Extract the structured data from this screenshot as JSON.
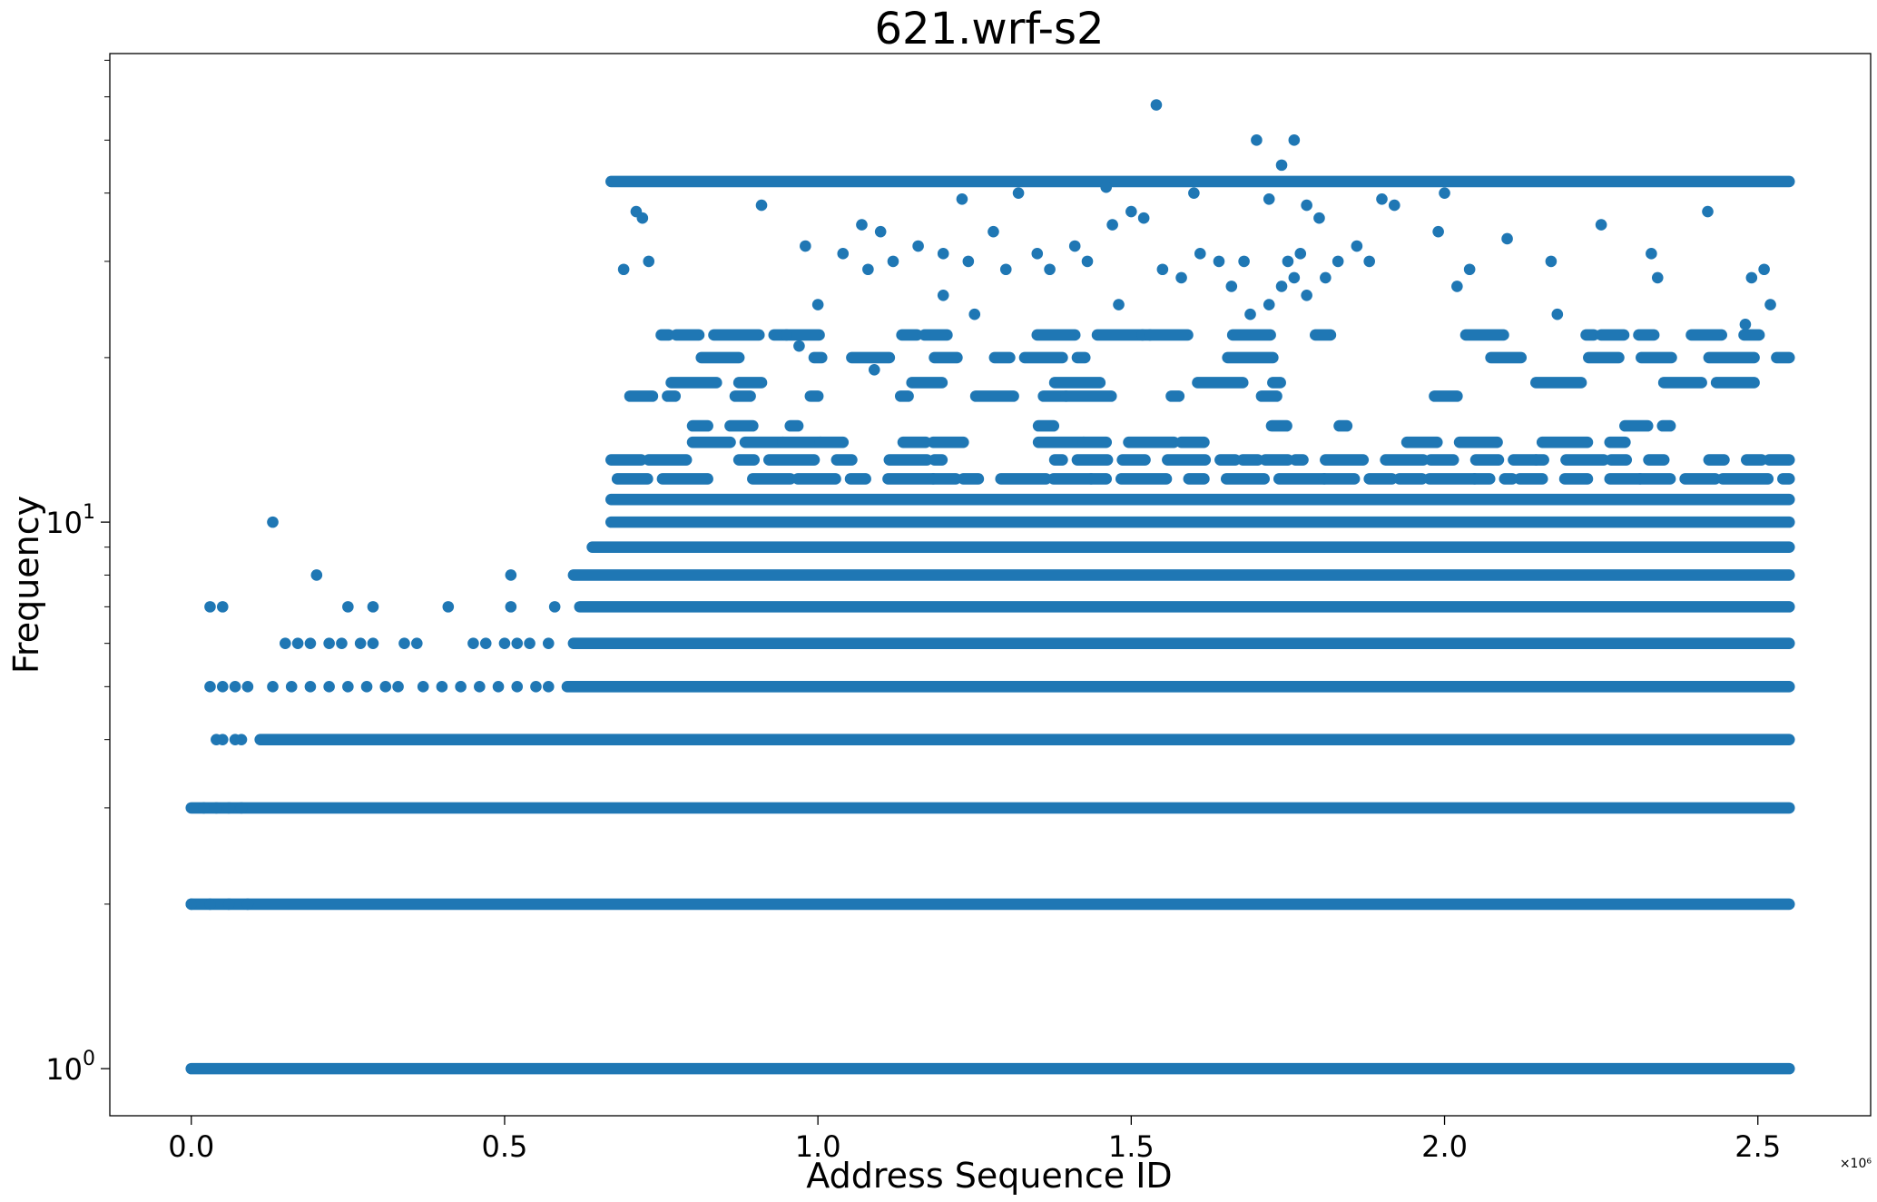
{
  "chart_data": {
    "type": "scatter",
    "title": "621.wrf-s2",
    "xlabel": "Address Sequence ID",
    "ylabel": "Frequency",
    "x_offset_label": "×10⁶",
    "xlim": [
      -0.13,
      2.68
    ],
    "ylim": [
      0.82,
      72
    ],
    "yscale": "log",
    "grid": false,
    "legend": "none",
    "marker_color": "#1f77b4",
    "x_ticks": [
      0.0,
      0.5,
      1.0,
      1.5,
      2.0,
      2.5
    ],
    "x_tick_labels": [
      "0.0",
      "0.5",
      "1.0",
      "1.5",
      "2.0",
      "2.5"
    ],
    "y_major_ticks": [
      1,
      10
    ],
    "y_tick_base": "10",
    "y_tick_exps": [
      "0",
      "1"
    ],
    "bands": [
      {
        "y": 1,
        "x_start": 0.0,
        "x_end": 2.55
      },
      {
        "y": 2,
        "x_start": 0.0,
        "x_end": 2.55
      },
      {
        "y": 3,
        "x_start": 0.0,
        "x_end": 2.55
      },
      {
        "y": 4,
        "x_start": 0.11,
        "x_end": 2.55
      },
      {
        "y": 5,
        "x_start": 0.6,
        "x_end": 2.55
      },
      {
        "y": 6,
        "x_start": 0.61,
        "x_end": 2.55
      },
      {
        "y": 7,
        "x_start": 0.62,
        "x_end": 2.55
      },
      {
        "y": 8,
        "x_start": 0.61,
        "x_end": 2.55
      },
      {
        "y": 9,
        "x_start": 0.64,
        "x_end": 2.55
      },
      {
        "y": 10,
        "x_start": 0.67,
        "x_end": 2.55
      },
      {
        "y": 11,
        "x_start": 0.67,
        "x_end": 2.55
      },
      {
        "y": 42,
        "x_start": 0.67,
        "x_end": 2.55
      }
    ],
    "partial_bands": [
      {
        "y": 12,
        "x_start": 0.68,
        "x_end": 2.55,
        "density": 0.85
      },
      {
        "y": 13,
        "x_start": 0.67,
        "x_end": 2.55,
        "density": 0.75
      },
      {
        "y": 14,
        "x_start": 0.8,
        "x_end": 2.55,
        "density": 0.55
      },
      {
        "y": 15,
        "x_start": 0.8,
        "x_end": 2.55,
        "density": 0.3
      },
      {
        "y": 17,
        "x_start": 0.7,
        "x_end": 2.55,
        "density": 0.25
      },
      {
        "y": 18,
        "x_start": 0.73,
        "x_end": 2.55,
        "density": 0.3
      },
      {
        "y": 20,
        "x_start": 0.67,
        "x_end": 2.55,
        "density": 0.55
      },
      {
        "y": 22,
        "x_start": 0.69,
        "x_end": 2.55,
        "density": 0.6
      }
    ],
    "points": [
      [
        0.03,
        7
      ],
      [
        0.05,
        7
      ],
      [
        0.13,
        10
      ],
      [
        0.2,
        8
      ],
      [
        0.25,
        7
      ],
      [
        0.29,
        7
      ],
      [
        0.41,
        7
      ],
      [
        0.51,
        8
      ],
      [
        0.51,
        7
      ],
      [
        0.58,
        7
      ],
      [
        0.15,
        6
      ],
      [
        0.17,
        6
      ],
      [
        0.19,
        6
      ],
      [
        0.22,
        6
      ],
      [
        0.24,
        6
      ],
      [
        0.27,
        6
      ],
      [
        0.29,
        6
      ],
      [
        0.34,
        6
      ],
      [
        0.36,
        6
      ],
      [
        0.45,
        6
      ],
      [
        0.47,
        6
      ],
      [
        0.5,
        6
      ],
      [
        0.52,
        6
      ],
      [
        0.54,
        6
      ],
      [
        0.57,
        6
      ],
      [
        0.03,
        5
      ],
      [
        0.05,
        5
      ],
      [
        0.07,
        5
      ],
      [
        0.09,
        5
      ],
      [
        0.13,
        5
      ],
      [
        0.16,
        5
      ],
      [
        0.19,
        5
      ],
      [
        0.22,
        5
      ],
      [
        0.25,
        5
      ],
      [
        0.28,
        5
      ],
      [
        0.31,
        5
      ],
      [
        0.33,
        5
      ],
      [
        0.37,
        5
      ],
      [
        0.4,
        5
      ],
      [
        0.43,
        5
      ],
      [
        0.46,
        5
      ],
      [
        0.49,
        5
      ],
      [
        0.52,
        5
      ],
      [
        0.55,
        5
      ],
      [
        0.57,
        5
      ],
      [
        0.04,
        4
      ],
      [
        0.05,
        4
      ],
      [
        0.07,
        4
      ],
      [
        0.08,
        4
      ],
      [
        0.02,
        3
      ],
      [
        0.04,
        3
      ],
      [
        0.06,
        3
      ],
      [
        0.08,
        3
      ],
      [
        0.0,
        2
      ],
      [
        0.03,
        2
      ],
      [
        0.06,
        2
      ],
      [
        0.09,
        2
      ],
      [
        1.54,
        58
      ],
      [
        1.7,
        50
      ],
      [
        1.76,
        50
      ],
      [
        1.74,
        45
      ],
      [
        0.71,
        37
      ],
      [
        0.73,
        30
      ],
      [
        0.69,
        29
      ],
      [
        0.72,
        36
      ],
      [
        0.91,
        38
      ],
      [
        0.98,
        32
      ],
      [
        1.0,
        25
      ],
      [
        1.04,
        31
      ],
      [
        1.07,
        35
      ],
      [
        1.08,
        29
      ],
      [
        1.1,
        34
      ],
      [
        1.12,
        30
      ],
      [
        1.16,
        32
      ],
      [
        1.2,
        31
      ],
      [
        1.24,
        30
      ],
      [
        1.28,
        34
      ],
      [
        1.3,
        29
      ],
      [
        1.35,
        31
      ],
      [
        1.37,
        29
      ],
      [
        1.41,
        32
      ],
      [
        1.43,
        30
      ],
      [
        1.47,
        35
      ],
      [
        1.5,
        37
      ],
      [
        1.52,
        36
      ],
      [
        1.55,
        29
      ],
      [
        1.58,
        28
      ],
      [
        1.61,
        31
      ],
      [
        1.64,
        30
      ],
      [
        1.66,
        27
      ],
      [
        1.68,
        30
      ],
      [
        1.72,
        25
      ],
      [
        1.74,
        27
      ],
      [
        1.75,
        30
      ],
      [
        1.76,
        28
      ],
      [
        1.77,
        31
      ],
      [
        1.78,
        26
      ],
      [
        1.8,
        36
      ],
      [
        1.83,
        30
      ],
      [
        1.86,
        32
      ],
      [
        1.88,
        30
      ],
      [
        1.9,
        39
      ],
      [
        1.99,
        34
      ],
      [
        2.02,
        27
      ],
      [
        2.04,
        29
      ],
      [
        2.1,
        33
      ],
      [
        2.17,
        30
      ],
      [
        2.25,
        35
      ],
      [
        2.33,
        31
      ],
      [
        2.34,
        28
      ],
      [
        2.42,
        37
      ],
      [
        2.49,
        28
      ],
      [
        2.51,
        29
      ],
      [
        2.52,
        25
      ],
      [
        1.23,
        39
      ],
      [
        1.32,
        40
      ],
      [
        1.46,
        41
      ],
      [
        1.6,
        40
      ],
      [
        1.72,
        39
      ],
      [
        1.78,
        38
      ],
      [
        1.92,
        38
      ],
      [
        2.0,
        40
      ],
      [
        0.95,
        22
      ],
      [
        1.25,
        24
      ],
      [
        1.48,
        25
      ],
      [
        1.69,
        24
      ],
      [
        2.18,
        24
      ],
      [
        2.48,
        23
      ],
      [
        1.81,
        28
      ],
      [
        1.2,
        26
      ],
      [
        0.97,
        21
      ],
      [
        1.09,
        19
      ]
    ]
  }
}
